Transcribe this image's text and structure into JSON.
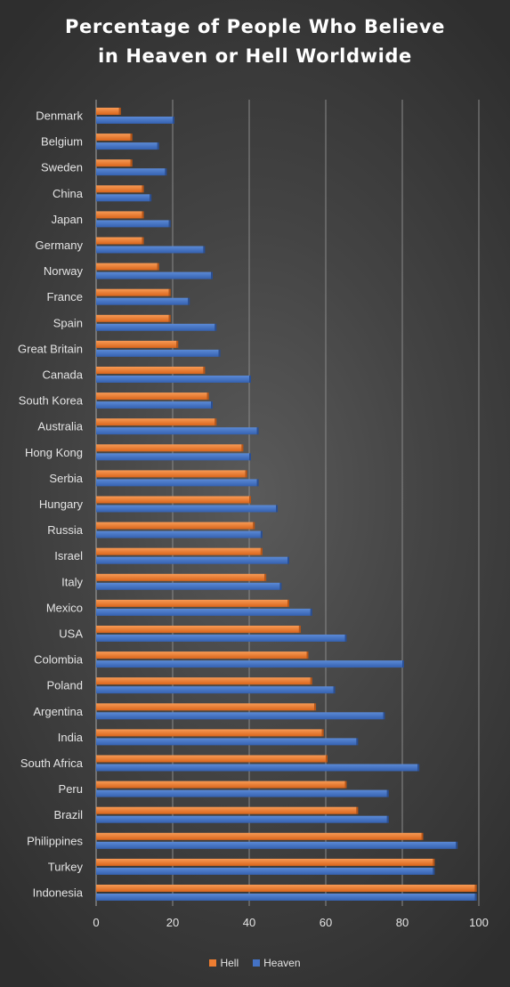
{
  "chart_data": {
    "type": "bar",
    "orientation": "horizontal",
    "title_lines": [
      "Percentage of People Who Believe",
      "in Heaven or Hell Worldwide"
    ],
    "xlabel": "",
    "ylabel": "",
    "xlim": [
      0,
      100
    ],
    "x_ticks": [
      0,
      20,
      40,
      60,
      80,
      100
    ],
    "grid": true,
    "legend_position": "bottom",
    "categories": [
      "Denmark",
      "Belgium",
      "Sweden",
      "China",
      "Japan",
      "Germany",
      "Norway",
      "France",
      "Spain",
      "Great Britain",
      "Canada",
      "South Korea",
      "Australia",
      "Hong Kong",
      "Serbia",
      "Hungary",
      "Russia",
      "Israel",
      "Italy",
      "Mexico",
      "USA",
      "Colombia",
      "Poland",
      "Argentina",
      "India",
      "South Africa",
      "Peru",
      "Brazil",
      "Philippines",
      "Turkey",
      "Indonesia"
    ],
    "series": [
      {
        "name": "Hell",
        "color": "#ed7d31",
        "values": [
          6,
          9,
          9,
          12,
          12,
          12,
          16,
          19,
          19,
          21,
          28,
          29,
          31,
          38,
          39,
          40,
          41,
          43,
          44,
          50,
          53,
          55,
          56,
          57,
          59,
          60,
          65,
          68,
          85,
          88,
          99
        ]
      },
      {
        "name": "Heaven",
        "color": "#4472c4",
        "values": [
          20,
          16,
          18,
          14,
          19,
          28,
          30,
          24,
          31,
          32,
          40,
          30,
          42,
          40,
          42,
          47,
          43,
          50,
          48,
          56,
          65,
          80,
          62,
          75,
          68,
          84,
          76,
          76,
          94,
          88,
          99
        ]
      }
    ]
  }
}
